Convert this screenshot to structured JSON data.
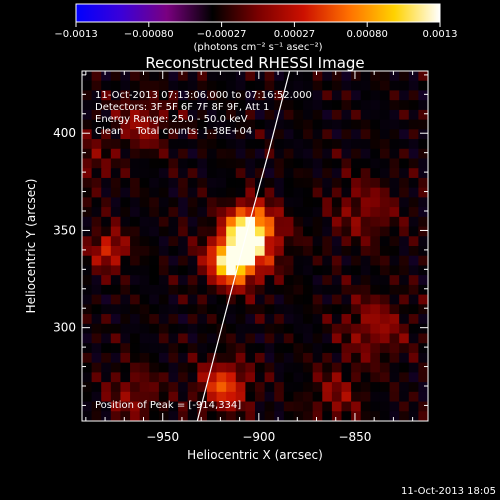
{
  "chart_data": {
    "type": "heatmap",
    "title": "Reconstructed RHESSI Image",
    "colorbar": {
      "ticks": [
        "-0.0013",
        "-0.00080",
        "-0.00027",
        "0.00027",
        "0.00080",
        "0.0013"
      ],
      "range": [
        -0.0013,
        0.0013
      ],
      "unit_label": "(photons cm⁻² s⁻¹ asec⁻²)",
      "colors": [
        "#0000ff",
        "#3b00d8",
        "#7a0080",
        "#000000",
        "#7a0000",
        "#cc1000",
        "#ff7000",
        "#ffd200",
        "#ffffff"
      ]
    },
    "info_lines": [
      "11-Oct-2013 07:13:06.000 to 07:16:52.000",
      "Detectors: 3F 5F 6F 7F 8F 9F, Att 1",
      "Energy Range: 25.0 - 50.0 keV",
      "Clean    Total counts: 1.38E+04"
    ],
    "peak_label": "Position of Peak = [-914,334]",
    "peak": [
      -914,
      334
    ],
    "xlabel": "Heliocentric X (arcsec)",
    "ylabel": "Heliocentric Y (arcsec)",
    "xlim": [
      -992,
      -812
    ],
    "ylim": [
      252,
      432
    ],
    "xticks": [
      -950,
      -900,
      -850
    ],
    "yticks": [
      300,
      350,
      400
    ],
    "xtick_labels": [
      "−950",
      "−900",
      "−850"
    ],
    "ytick_labels": [
      "300",
      "350",
      "400"
    ],
    "sources": [
      {
        "x": -914,
        "y": 334,
        "amp": 1.0,
        "sigma": 9
      },
      {
        "x": -905,
        "y": 352,
        "amp": 0.85,
        "sigma": 8
      },
      {
        "x": -902,
        "y": 344,
        "amp": 0.45,
        "sigma": 12
      },
      {
        "x": -918,
        "y": 270,
        "amp": 0.65,
        "sigma": 9
      },
      {
        "x": -978,
        "y": 340,
        "amp": 0.55,
        "sigma": 7
      },
      {
        "x": -960,
        "y": 405,
        "amp": 0.35,
        "sigma": 10
      },
      {
        "x": -845,
        "y": 360,
        "amp": 0.3,
        "sigma": 12
      },
      {
        "x": -840,
        "y": 300,
        "amp": 0.35,
        "sigma": 12
      },
      {
        "x": -860,
        "y": 265,
        "amp": 0.3,
        "sigma": 10
      },
      {
        "x": -965,
        "y": 265,
        "amp": 0.3,
        "sigma": 10
      },
      {
        "x": -990,
        "y": 385,
        "amp": 0.25,
        "sigma": 10
      }
    ],
    "limb_curve": [
      [
        -884,
        432
      ],
      [
        -895,
        390
      ],
      [
        -906,
        350
      ],
      [
        -918,
        305
      ],
      [
        -932,
        252
      ]
    ],
    "limb_color": "#ffffff",
    "grid": false
  },
  "footer": {
    "timestamp": "11-Oct-2013 18:05"
  }
}
